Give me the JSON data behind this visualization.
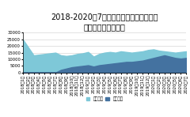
{
  "title": "2018-2020年7月王者荣耀与和平精英活跃\n用户数对比（万人）",
  "labels": [
    "2018年1月",
    "2018年2月",
    "2018年3月",
    "2018年4月",
    "2018年5月",
    "2018年6月",
    "2018年7月",
    "2018年8月",
    "2018年9月",
    "2018年10月",
    "2018年11月",
    "2018年12月",
    "2019年1月",
    "2019年2月",
    "2019年3月",
    "2019年4月",
    "2019年5月",
    "2019年6月",
    "2019年7月",
    "2019年8月",
    "2019年9月",
    "2019年10月",
    "2019年11月",
    "2019年12月",
    "2020年1月",
    "2020年2月",
    "2020年3月",
    "2020年4月",
    "2020年5月",
    "2020年6月",
    "2020年7月"
  ],
  "wangzhe": [
    25000,
    19000,
    13000,
    13500,
    14000,
    14500,
    15000,
    13000,
    12500,
    13000,
    14000,
    14500,
    15500,
    12000,
    14000,
    15000,
    15500,
    15000,
    16000,
    15500,
    15000,
    15500,
    16000,
    17000,
    17500,
    16500,
    16000,
    15500,
    15000,
    15500,
    16000
  ],
  "heping": [
    0,
    0,
    0,
    0,
    0,
    0,
    0,
    2000,
    3000,
    4000,
    4500,
    5000,
    5500,
    4500,
    5500,
    6000,
    6500,
    7000,
    7500,
    8000,
    8000,
    8500,
    9000,
    10000,
    11000,
    12000,
    13000,
    12000,
    11000,
    10500,
    11000
  ],
  "color_wangzhe": "#7ec8d8",
  "color_heping": "#4472a0",
  "ylim": [
    0,
    30000
  ],
  "yticks": [
    0,
    5000,
    10000,
    15000,
    20000,
    25000,
    30000
  ],
  "legend_wangzhe": "王者荣耀",
  "legend_heping": "和平精英",
  "background": "#ffffff",
  "title_fontsize": 7.0,
  "tick_fontsize": 3.8
}
